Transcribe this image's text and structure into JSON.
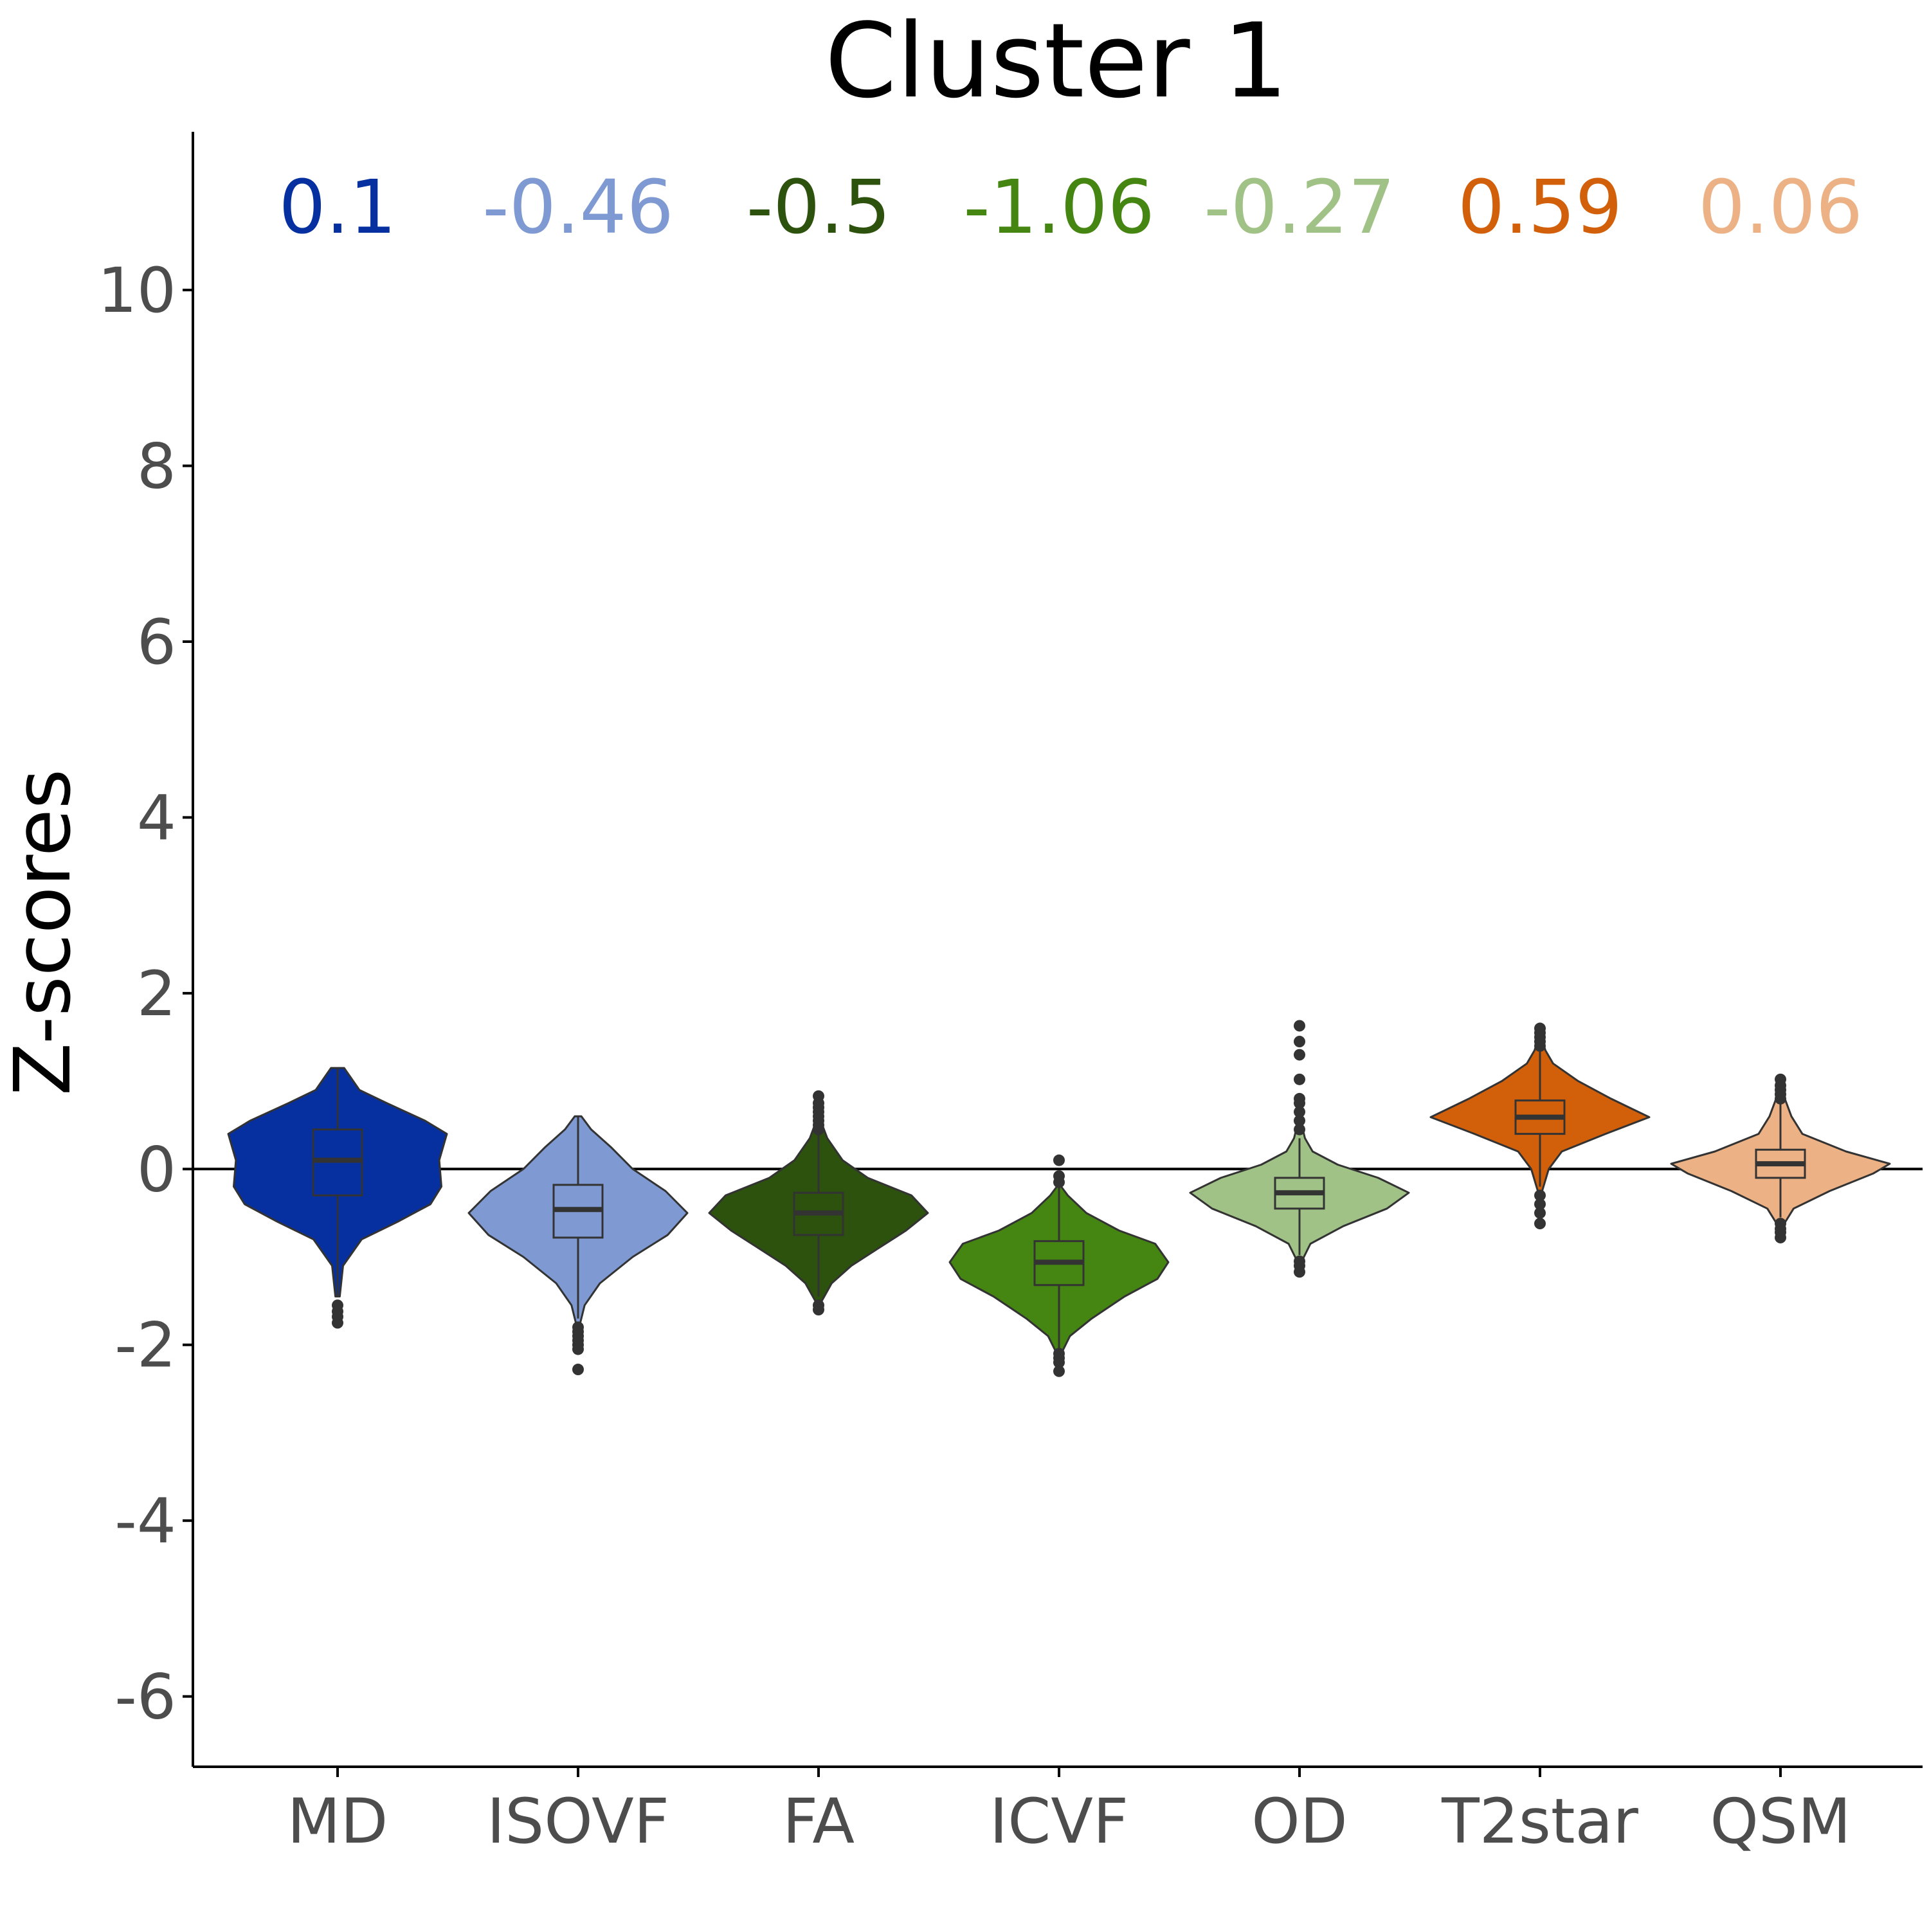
{
  "chart_data": {
    "type": "violin",
    "title": "Cluster 1",
    "ylabel": "Z-scores",
    "xlabel": "",
    "ylim": [
      -6.8,
      11.8
    ],
    "yticks": [
      -6,
      -4,
      -2,
      0,
      2,
      4,
      6,
      8,
      10
    ],
    "ytick_labels": [
      "-6",
      "-4",
      "-2",
      "0",
      "2",
      "4",
      "6",
      "8",
      "10"
    ],
    "reference_line": 0,
    "categories": [
      "MD",
      "ISOVF",
      "FA",
      "ICVF",
      "OD",
      "T2star",
      "QSM"
    ],
    "means": [
      "0.1",
      "-0.46",
      "-0.5",
      "-1.06",
      "-0.27",
      "0.59",
      "0.06"
    ],
    "colors": [
      "#0630a0",
      "#7f9ad2",
      "#2c520e",
      "#458511",
      "#a1c286",
      "#d2600a",
      "#ecb184"
    ],
    "series": [
      {
        "category": "MD",
        "min": -1.45,
        "max": 1.15,
        "q1": -0.3,
        "median": 0.1,
        "q3": 0.45,
        "whisker_low": -1.45,
        "whisker_high": 1.15,
        "outliers": [
          -1.55,
          -1.62,
          -1.68,
          -1.75
        ],
        "density": [
          [
            -1.45,
            0.02
          ],
          [
            -1.1,
            0.05
          ],
          [
            -0.8,
            0.22
          ],
          [
            -0.6,
            0.55
          ],
          [
            -0.4,
            0.85
          ],
          [
            -0.2,
            0.95
          ],
          [
            0.1,
            0.93
          ],
          [
            0.4,
            1.0
          ],
          [
            0.55,
            0.8
          ],
          [
            0.75,
            0.45
          ],
          [
            0.9,
            0.2
          ],
          [
            1.15,
            0.06
          ]
        ]
      },
      {
        "category": "ISOVF",
        "min": -1.75,
        "max": 0.6,
        "q1": -0.78,
        "median": -0.46,
        "q3": -0.18,
        "whisker_low": -1.7,
        "whisker_high": 0.6,
        "outliers": [
          -1.8,
          -1.85,
          -1.9,
          -1.95,
          -2.0,
          -2.05,
          -2.28
        ],
        "density": [
          [
            -1.75,
            0.02
          ],
          [
            -1.55,
            0.06
          ],
          [
            -1.3,
            0.2
          ],
          [
            -1.0,
            0.5
          ],
          [
            -0.75,
            0.82
          ],
          [
            -0.5,
            1.0
          ],
          [
            -0.25,
            0.8
          ],
          [
            0.0,
            0.5
          ],
          [
            0.25,
            0.3
          ],
          [
            0.45,
            0.12
          ],
          [
            0.6,
            0.03
          ]
        ]
      },
      {
        "category": "FA",
        "min": -1.5,
        "max": 0.55,
        "q1": -0.75,
        "median": -0.5,
        "q3": -0.27,
        "whisker_low": -1.45,
        "whisker_high": 0.4,
        "outliers": [
          -1.55,
          -1.6,
          0.45,
          0.5,
          0.55,
          0.6,
          0.65,
          0.7,
          0.75,
          0.83
        ],
        "density": [
          [
            -1.5,
            0.03
          ],
          [
            -1.3,
            0.12
          ],
          [
            -1.1,
            0.3
          ],
          [
            -0.9,
            0.55
          ],
          [
            -0.7,
            0.8
          ],
          [
            -0.5,
            1.0
          ],
          [
            -0.3,
            0.85
          ],
          [
            -0.1,
            0.45
          ],
          [
            0.1,
            0.22
          ],
          [
            0.35,
            0.08
          ],
          [
            0.55,
            0.02
          ]
        ]
      },
      {
        "category": "ICVF",
        "min": -2.1,
        "max": -0.2,
        "q1": -1.32,
        "median": -1.06,
        "q3": -0.82,
        "whisker_low": -2.05,
        "whisker_high": -0.2,
        "outliers": [
          -2.1,
          -2.15,
          -2.2,
          -2.3,
          -0.15,
          -0.08,
          0.1
        ],
        "density": [
          [
            -2.1,
            0.02
          ],
          [
            -1.9,
            0.1
          ],
          [
            -1.7,
            0.3
          ],
          [
            -1.45,
            0.6
          ],
          [
            -1.25,
            0.9
          ],
          [
            -1.06,
            1.0
          ],
          [
            -0.85,
            0.88
          ],
          [
            -0.7,
            0.55
          ],
          [
            -0.5,
            0.25
          ],
          [
            -0.3,
            0.08
          ],
          [
            -0.2,
            0.02
          ]
        ]
      },
      {
        "category": "OD",
        "min": -1.05,
        "max": 0.55,
        "q1": -0.45,
        "median": -0.27,
        "q3": -0.1,
        "whisker_low": -0.98,
        "whisker_high": 0.35,
        "outliers": [
          -1.05,
          -1.1,
          -1.17,
          0.45,
          0.55,
          0.65,
          0.75,
          0.8,
          1.02,
          1.3,
          1.45,
          1.63
        ],
        "density": [
          [
            -1.05,
            0.02
          ],
          [
            -0.85,
            0.1
          ],
          [
            -0.65,
            0.4
          ],
          [
            -0.45,
            0.8
          ],
          [
            -0.27,
            1.0
          ],
          [
            -0.1,
            0.72
          ],
          [
            0.05,
            0.35
          ],
          [
            0.2,
            0.12
          ],
          [
            0.35,
            0.05
          ],
          [
            0.55,
            0.01
          ]
        ]
      },
      {
        "category": "T2star",
        "min": -0.25,
        "max": 1.5,
        "q1": 0.4,
        "median": 0.59,
        "q3": 0.78,
        "whisker_low": -0.2,
        "whisker_high": 1.35,
        "outliers": [
          -0.3,
          -0.4,
          -0.5,
          -0.62,
          1.4,
          1.45,
          1.5,
          1.55,
          1.6
        ],
        "density": [
          [
            -0.25,
            0.02
          ],
          [
            0.0,
            0.08
          ],
          [
            0.2,
            0.2
          ],
          [
            0.4,
            0.6
          ],
          [
            0.59,
            1.0
          ],
          [
            0.8,
            0.65
          ],
          [
            1.0,
            0.35
          ],
          [
            1.2,
            0.12
          ],
          [
            1.35,
            0.05
          ],
          [
            1.5,
            0.01
          ]
        ]
      },
      {
        "category": "QSM",
        "min": -0.65,
        "max": 0.95,
        "q1": -0.1,
        "median": 0.06,
        "q3": 0.22,
        "whisker_low": -0.55,
        "whisker_high": 0.75,
        "outliers": [
          -0.62,
          -0.68,
          -0.72,
          -0.78,
          0.8,
          0.85,
          0.9,
          0.95,
          1.02
        ],
        "density": [
          [
            -0.65,
            0.02
          ],
          [
            -0.45,
            0.12
          ],
          [
            -0.25,
            0.45
          ],
          [
            -0.05,
            0.85
          ],
          [
            0.06,
            1.0
          ],
          [
            0.2,
            0.6
          ],
          [
            0.4,
            0.2
          ],
          [
            0.6,
            0.1
          ],
          [
            0.8,
            0.04
          ],
          [
            0.95,
            0.01
          ]
        ]
      }
    ]
  }
}
